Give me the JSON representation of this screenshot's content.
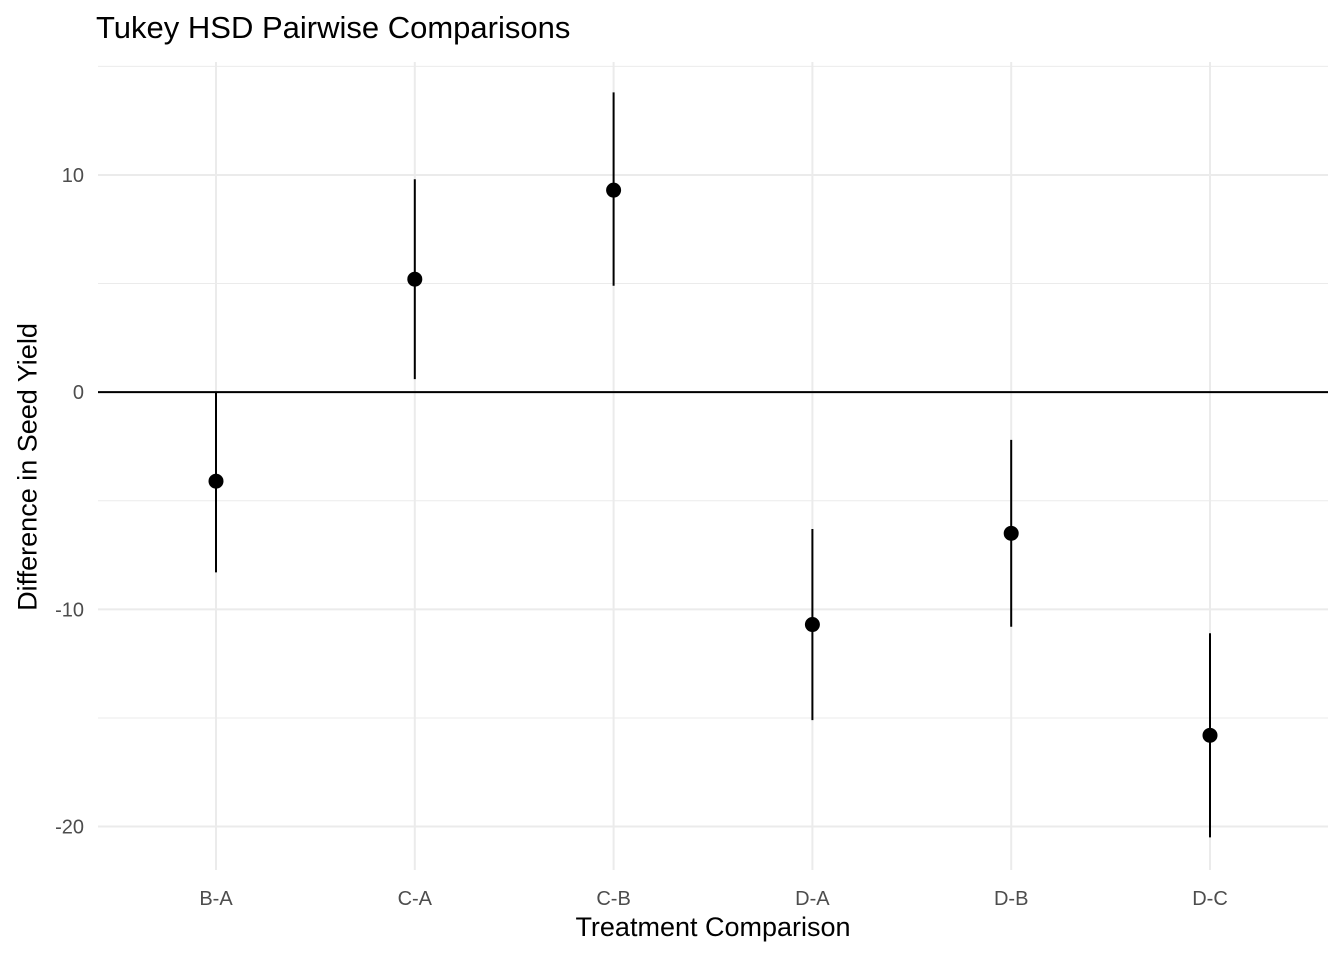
{
  "chart_data": {
    "type": "scatter",
    "title": "Tukey HSD Pairwise Comparisons",
    "xlabel": "Treatment Comparison",
    "ylabel": "Difference in Seed Yield",
    "categories": [
      "B-A",
      "C-A",
      "C-B",
      "D-A",
      "D-B",
      "D-C"
    ],
    "series": [
      {
        "values": [
          -4.1,
          5.2,
          9.3,
          -10.7,
          -6.5,
          -15.8
        ],
        "lower": [
          -8.3,
          0.6,
          4.9,
          -15.1,
          -10.8,
          -20.5
        ],
        "upper": [
          0.0,
          9.8,
          13.8,
          -6.3,
          -2.2,
          -11.1
        ]
      }
    ],
    "ylim": [
      -22.0,
      15.2
    ],
    "yticks": [
      -20,
      -10,
      0,
      10
    ],
    "reference_line": 0,
    "grid": true,
    "colors": {
      "point": "#000000",
      "grid": "#ebebeb",
      "tick_text": "#4d4d4d"
    }
  }
}
